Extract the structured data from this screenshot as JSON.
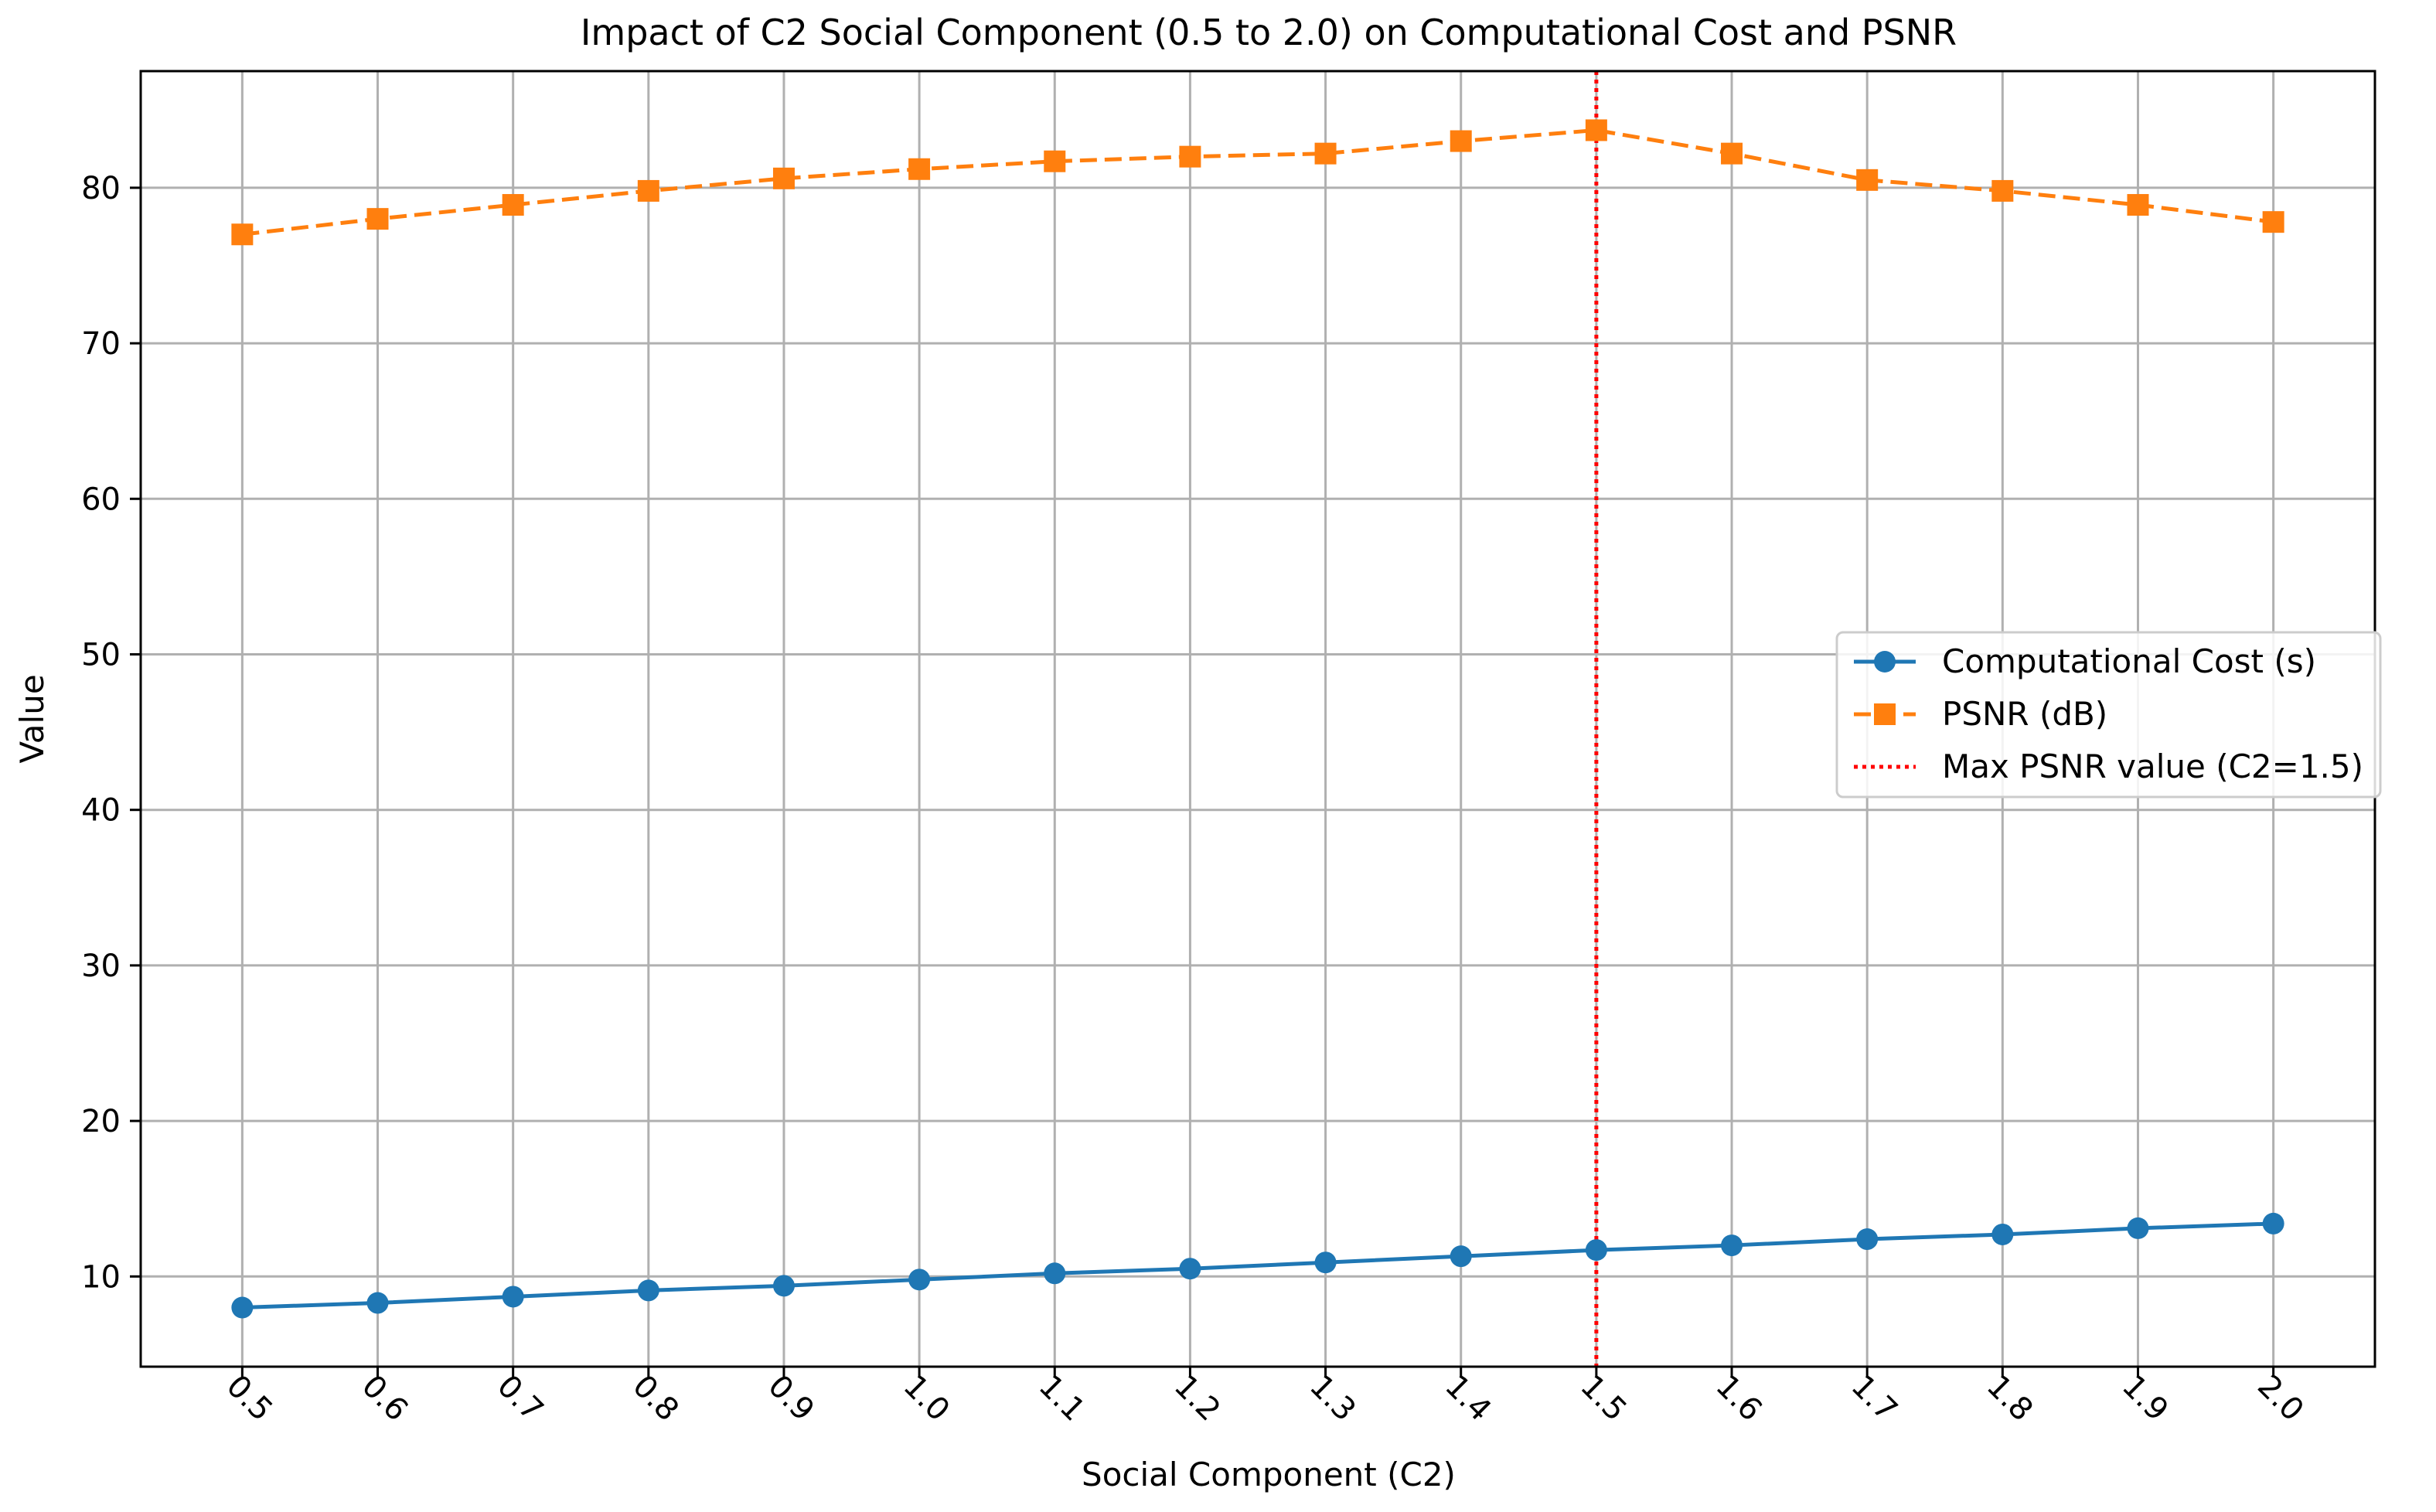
{
  "chart_data": {
    "type": "line",
    "title": "Impact of C2 Social Component (0.5 to 2.0) on Computational Cost and PSNR",
    "xlabel": "Social Component (C2)",
    "ylabel": "Value",
    "x": [
      0.5,
      0.6,
      0.7,
      0.8,
      0.9,
      1.0,
      1.1,
      1.2,
      1.3,
      1.4,
      1.5,
      1.6,
      1.7,
      1.8,
      1.9,
      2.0
    ],
    "x_tick_labels": [
      "0.5",
      "0.6",
      "0.7",
      "0.8",
      "0.9",
      "1.0",
      "1.1",
      "1.2",
      "1.3",
      "1.4",
      "1.5",
      "1.6",
      "1.7",
      "1.8",
      "1.9",
      "2.0"
    ],
    "xlim": [
      0.425,
      2.075
    ],
    "ylim": [
      4.2,
      87.5
    ],
    "y_ticks": [
      10,
      20,
      30,
      40,
      50,
      60,
      70,
      80
    ],
    "y_tick_labels": [
      "10",
      "20",
      "30",
      "40",
      "50",
      "60",
      "70",
      "80"
    ],
    "grid": true,
    "legend_position": "center-right",
    "series": [
      {
        "name": "Computational Cost (s)",
        "color": "#1f77b4",
        "marker": "circle",
        "linestyle": "solid",
        "values": [
          8.0,
          8.3,
          8.7,
          9.1,
          9.4,
          9.8,
          10.2,
          10.5,
          10.9,
          11.3,
          11.7,
          12.0,
          12.4,
          12.7,
          13.1,
          13.4
        ]
      },
      {
        "name": "PSNR (dB)",
        "color": "#ff7f0e",
        "marker": "square",
        "linestyle": "dashed",
        "values": [
          77.0,
          78.0,
          78.9,
          79.8,
          80.6,
          81.2,
          81.7,
          82.0,
          82.2,
          83.0,
          83.7,
          82.2,
          80.5,
          79.8,
          78.9,
          77.8
        ]
      }
    ],
    "reference_line": {
      "name": "Max PSNR value (C2=1.5)",
      "x": 1.5,
      "color": "#ff0000",
      "linestyle": "dotted"
    }
  }
}
